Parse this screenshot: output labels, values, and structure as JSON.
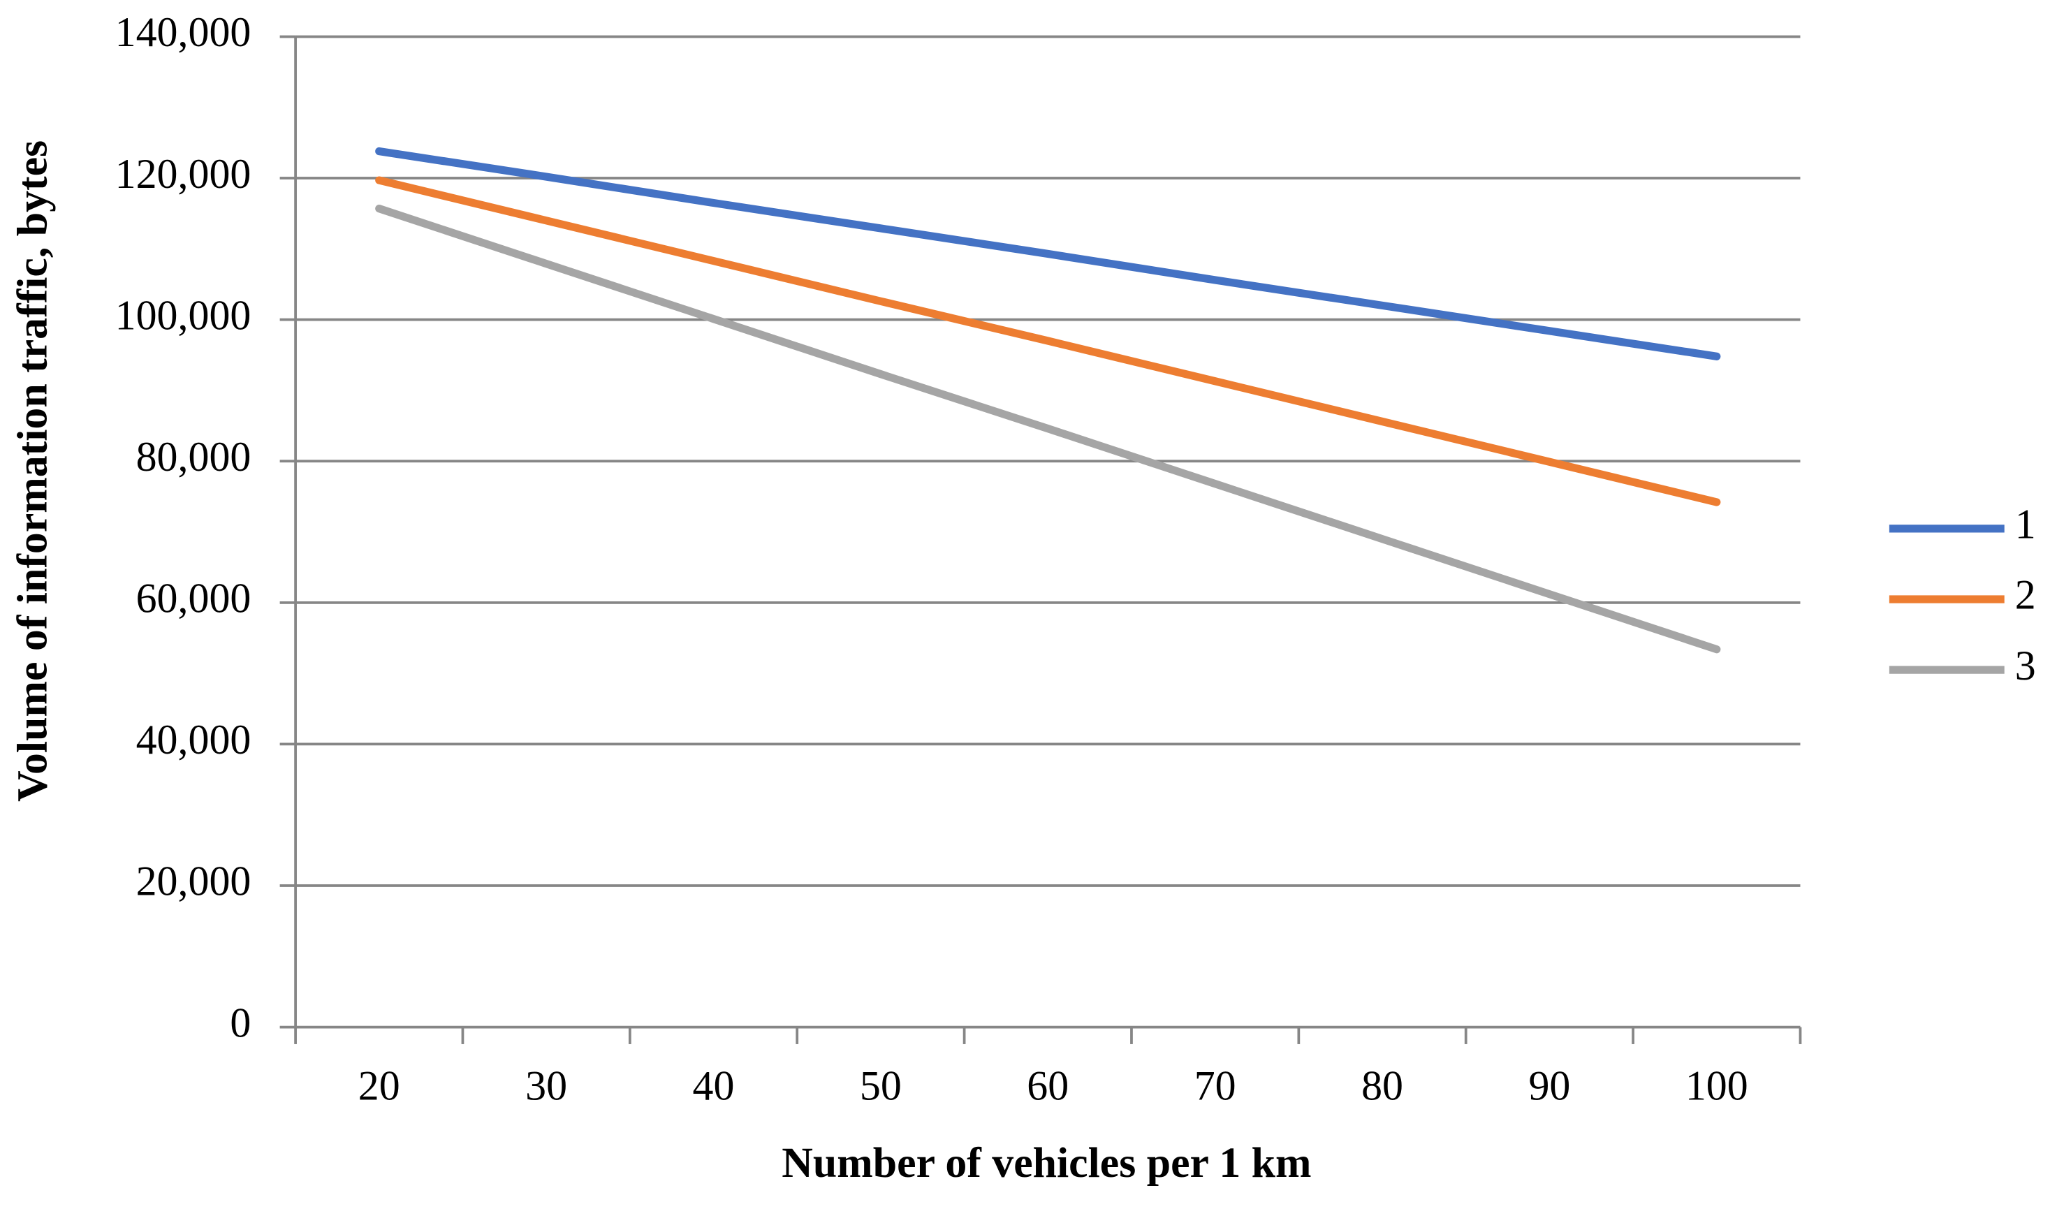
{
  "chart_data": {
    "type": "line",
    "x_label": "Number of vehicles per 1 km",
    "y_label": "Volume of information traffic, bytes",
    "categories": [
      "20",
      "30",
      "40",
      "50",
      "60",
      "70",
      "80",
      "90",
      "100"
    ],
    "series": [
      {
        "name": "1",
        "color": "#4472c4",
        "values": [
          123800,
          120200,
          116500,
          112900,
          109300,
          105600,
          102000,
          98400,
          94800
        ]
      },
      {
        "name": "2",
        "color": "#ed7d31",
        "values": [
          119700,
          114000,
          108300,
          102600,
          97000,
          91300,
          85600,
          79900,
          74200
        ]
      },
      {
        "name": "3",
        "color": "#a5a5a5",
        "values": [
          115700,
          107900,
          100100,
          92300,
          84600,
          76800,
          69000,
          61200,
          53400
        ]
      }
    ],
    "ylim": [
      0,
      140000
    ],
    "yticks": [
      0,
      {
        "value": 20000,
        "label": "20,000"
      },
      {
        "value": 40000,
        "label": "40,000"
      },
      {
        "value": 60000,
        "label": "60,000"
      },
      {
        "value": 80000,
        "label": "80,000"
      },
      {
        "value": 100000,
        "label": "100,000"
      },
      {
        "value": 120000,
        "label": "120,000"
      },
      {
        "value": 140000,
        "label": "140,000"
      }
    ],
    "grid": true,
    "legend": "right"
  }
}
